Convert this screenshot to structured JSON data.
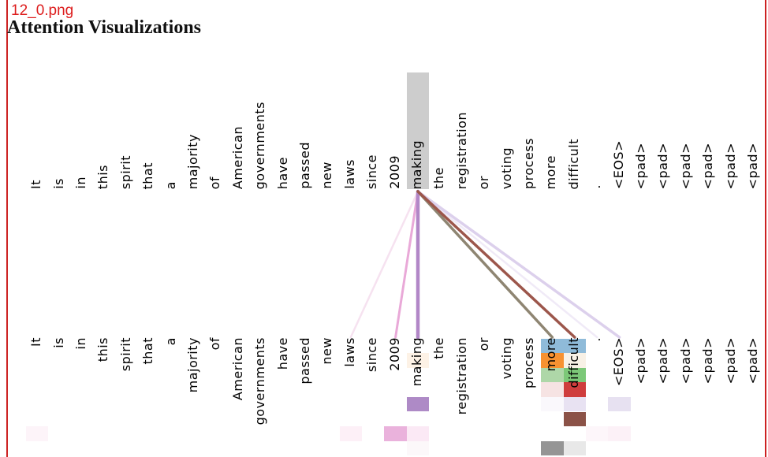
{
  "header": {
    "filename": "12_0.png",
    "title": "Attention Visualizations"
  },
  "colors": {
    "border": "#cc2222",
    "filename_text": "#dd1c1c",
    "selected_token_highlight": "#cdcdcd",
    "label_text": "#000000"
  },
  "chart_data": {
    "type": "heatmap",
    "title": "Attention Visualizations",
    "tokens": [
      "It",
      "is",
      "in",
      "this",
      "spirit",
      "that",
      "a",
      "majority",
      "of",
      "American",
      "governments",
      "have",
      "passed",
      "new",
      "laws",
      "since",
      "2009",
      "making",
      "the",
      "registration",
      "or",
      "voting",
      "process",
      "more",
      "difficult",
      ".",
      "<EOS>",
      "<pad>",
      "<pad>",
      "<pad>",
      "<pad>",
      "<pad>",
      "<pad>"
    ],
    "selected_token": "making",
    "selected_token_index": 17,
    "attention_lines": [
      {
        "target_index": 14,
        "target": "laws",
        "color": "#f6e2f0",
        "width": 2.5,
        "est_weight": 0.08
      },
      {
        "target_index": 16,
        "target": "2009",
        "color": "#e9a9d8",
        "width": 3,
        "est_weight": 0.35
      },
      {
        "target_index": 17,
        "target": "making",
        "color": "#b287c7",
        "width": 4.5,
        "est_weight": 0.6
      },
      {
        "target_index": 25,
        "target": ".",
        "color": "#f0eaf7",
        "width": 2.5,
        "est_weight": 0.07
      },
      {
        "target_index": 26,
        "target": "<EOS>",
        "color": "#dcd0ec",
        "width": 3.5,
        "est_weight": 0.2
      },
      {
        "target_index": 23,
        "target": "more",
        "color": "#8e8572",
        "width": 3.5,
        "est_weight": 0.55
      },
      {
        "target_index": 24,
        "target": "difficult",
        "color": "#9c564b",
        "width": 3.5,
        "est_weight": 0.6
      }
    ],
    "heatmap_cells": [
      {
        "head": 0,
        "col": 23,
        "token": "more",
        "color": "#8fbbd9",
        "est_weight": 0.45
      },
      {
        "head": 0,
        "col": 24,
        "token": "difficult",
        "color": "#8fbbd9",
        "est_weight": 0.45
      },
      {
        "head": 1,
        "col": 17,
        "token": "making",
        "color": "#fdf2e6",
        "est_weight": 0.06
      },
      {
        "head": 1,
        "col": 23,
        "token": "more",
        "color": "#f79231",
        "est_weight": 0.85
      },
      {
        "head": 1,
        "col": 24,
        "token": "difficult",
        "color": "#f8f1e6",
        "est_weight": 0.06
      },
      {
        "head": 2,
        "col": 23,
        "token": "more",
        "color": "#aed7a8",
        "est_weight": 0.4
      },
      {
        "head": 2,
        "col": 24,
        "token": "difficult",
        "color": "#7cc878",
        "est_weight": 0.65
      },
      {
        "head": 3,
        "col": 23,
        "token": "more",
        "color": "#f6e3e3",
        "est_weight": 0.1
      },
      {
        "head": 3,
        "col": 24,
        "token": "difficult",
        "color": "#cf3d3d",
        "est_weight": 0.8
      },
      {
        "head": 4,
        "col": 17,
        "token": "making",
        "color": "#ae8ac6",
        "est_weight": 0.55
      },
      {
        "head": 4,
        "col": 23,
        "token": "more",
        "color": "#faf8fc",
        "est_weight": 0.03
      },
      {
        "head": 4,
        "col": 24,
        "token": "difficult",
        "color": "#e8e2f2",
        "est_weight": 0.12
      },
      {
        "head": 4,
        "col": 26,
        "token": "<EOS>",
        "color": "#e7e1f1",
        "est_weight": 0.12
      },
      {
        "head": 5,
        "col": 24,
        "token": "difficult",
        "color": "#8b5247",
        "est_weight": 0.95
      },
      {
        "head": 6,
        "col": 0,
        "token": "It",
        "color": "#fdf4f9",
        "est_weight": 0.05
      },
      {
        "head": 6,
        "col": 14,
        "token": "laws",
        "color": "#fdf0f7",
        "est_weight": 0.07
      },
      {
        "head": 6,
        "col": 16,
        "token": "2009",
        "color": "#eab2dc",
        "est_weight": 0.45
      },
      {
        "head": 6,
        "col": 17,
        "token": "making",
        "color": "#fbe9f5",
        "est_weight": 0.12
      },
      {
        "head": 6,
        "col": 25,
        "token": ".",
        "color": "#fdf6fa",
        "est_weight": 0.04
      },
      {
        "head": 6,
        "col": 26,
        "token": "<EOS>",
        "color": "#fcf1f7",
        "est_weight": 0.08
      },
      {
        "head": 7,
        "col": 17,
        "token": "making",
        "color": "#fcf8fa",
        "est_weight": 0.03
      },
      {
        "head": 7,
        "col": 23,
        "token": "more",
        "color": "#959595",
        "est_weight": 0.7
      },
      {
        "head": 7,
        "col": 24,
        "token": "difficult",
        "color": "#e8e8e8",
        "est_weight": 0.15
      }
    ]
  }
}
